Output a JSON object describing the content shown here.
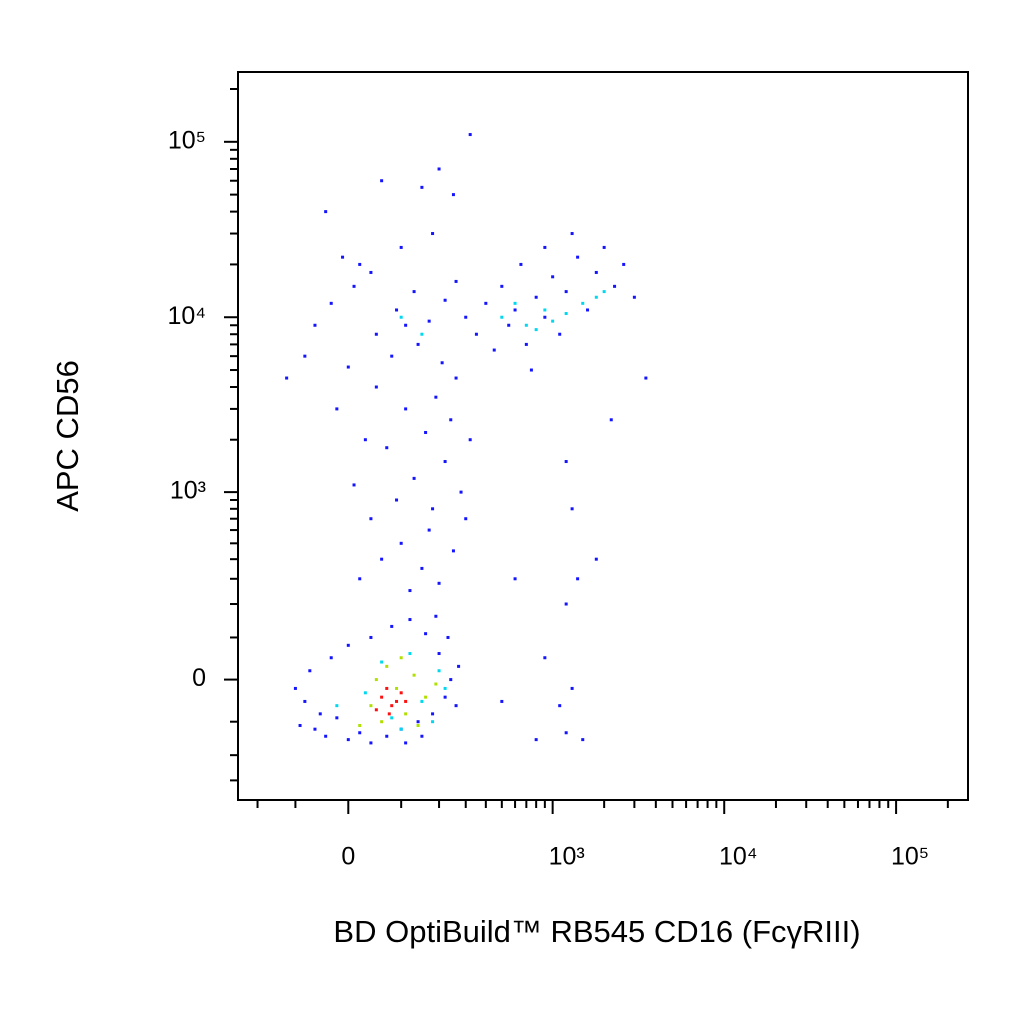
{
  "chart_data": {
    "type": "scatter",
    "xlabel": "BD OptiBuild™ RB545 CD16 (FcγRIII)",
    "ylabel": "APC CD56",
    "xscale": "biexponential",
    "yscale": "biexponential",
    "xlim": [
      -270,
      262000
    ],
    "ylim": [
      -400,
      250000
    ],
    "xticks": [
      0,
      {
        "value": 1000,
        "label": "10³"
      },
      {
        "value": 10000,
        "label": "10⁴"
      },
      {
        "value": 100000,
        "label": "10⁵"
      }
    ],
    "yticks": [
      0,
      {
        "value": 1000,
        "label": "10³"
      },
      {
        "value": 10000,
        "label": "10⁴"
      },
      {
        "value": 100000,
        "label": "10⁵"
      }
    ],
    "xminorticks": [
      -200,
      -100,
      100,
      200,
      300,
      400,
      500,
      600,
      700,
      800,
      900,
      2000,
      3000,
      4000,
      5000,
      6000,
      7000,
      8000,
      9000,
      20000,
      30000,
      40000,
      50000,
      60000,
      70000,
      80000,
      90000,
      200000
    ],
    "yminorticks": [
      -300,
      -200,
      -100,
      100,
      200,
      300,
      400,
      500,
      600,
      700,
      800,
      900,
      2000,
      3000,
      4000,
      5000,
      6000,
      7000,
      8000,
      9000,
      20000,
      30000,
      40000,
      50000,
      60000,
      70000,
      80000,
      90000,
      200000
    ],
    "series": [
      {
        "color": "#1414ff",
        "x": [
          -80,
          -60,
          -40,
          -20,
          0,
          20,
          40,
          70,
          100,
          140,
          180,
          220,
          240,
          200,
          160,
          120,
          80,
          40,
          0,
          -30,
          -70,
          -100,
          -50,
          150,
          260,
          230,
          190,
          270,
          -90,
          110,
          20,
          60,
          100,
          150,
          200,
          250,
          40,
          90,
          130,
          180,
          220,
          10,
          70,
          160,
          240,
          30,
          110,
          190,
          50,
          260,
          0,
          80,
          140,
          210,
          -20,
          280,
          300,
          320,
          120,
          170,
          -60,
          -30,
          10,
          50,
          90,
          130,
          170,
          220,
          260,
          300,
          20,
          100,
          180,
          -40,
          60,
          150,
          250,
          320,
          200,
          -10,
          110,
          -80,
          -120,
          40,
          350,
          400,
          450,
          500,
          550,
          600,
          650,
          700,
          800,
          900,
          1000,
          1100,
          1200,
          1400,
          1600,
          1800,
          2000,
          2300,
          2600,
          3000,
          3500,
          750,
          1300,
          900,
          2200,
          1200,
          1300,
          1400,
          1200,
          1800,
          600,
          800,
          1500,
          1200,
          500,
          1300,
          900,
          1100
        ],
        "y": [
          -50,
          -120,
          -140,
          -90,
          -150,
          -130,
          -160,
          -140,
          -120,
          -100,
          -80,
          -40,
          0,
          60,
          110,
          150,
          130,
          100,
          80,
          50,
          20,
          -20,
          -80,
          -140,
          -60,
          100,
          160,
          30,
          -110,
          -160,
          300,
          400,
          500,
          350,
          280,
          450,
          700,
          900,
          1200,
          800,
          1500,
          1100,
          1800,
          2200,
          2600,
          2000,
          3000,
          3500,
          4000,
          4500,
          5200,
          6000,
          7000,
          5500,
          3000,
          1000,
          700,
          2000,
          250,
          600,
          9000,
          12000,
          15000,
          8000,
          11000,
          14000,
          9500,
          12500,
          16000,
          10000,
          20000,
          25000,
          30000,
          40000,
          60000,
          55000,
          50000,
          110000,
          70000,
          22000,
          9000,
          6000,
          4500,
          18000,
          8000,
          12000,
          6500,
          15000,
          9000,
          11000,
          20000,
          7000,
          13000,
          10000,
          17000,
          8000,
          14000,
          22000,
          11000,
          18000,
          25000,
          15000,
          20000,
          13000,
          4500,
          5000,
          30000,
          25000,
          2600,
          1500,
          800,
          300,
          200,
          400,
          300,
          -150,
          -150,
          -130,
          -50,
          -20,
          50,
          -60
        ]
      },
      {
        "color": "#00d8f0",
        "x": [
          30,
          80,
          150,
          200,
          120,
          60,
          -20,
          180,
          100,
          220,
          500,
          700,
          900,
          1200,
          1500,
          800,
          1800,
          600,
          100,
          150,
          1000,
          2000
        ],
        "y": [
          -30,
          -90,
          -50,
          20,
          60,
          40,
          -60,
          -100,
          -120,
          -20,
          10000,
          9000,
          11000,
          10500,
          12000,
          8500,
          13000,
          12000,
          10000,
          8000,
          9500,
          14000
        ]
      },
      {
        "color": "#b0e000",
        "x": [
          40,
          90,
          110,
          60,
          130,
          70,
          20,
          160,
          100,
          50,
          140,
          190
        ],
        "y": [
          -60,
          -20,
          -80,
          -100,
          10,
          30,
          -110,
          -40,
          50,
          0,
          -110,
          -10
        ]
      },
      {
        "color": "#ff1010",
        "x": [
          60,
          80,
          70,
          90,
          50,
          100,
          75,
          110
        ],
        "y": [
          -40,
          -60,
          -20,
          -50,
          -70,
          -30,
          -80,
          -50
        ]
      }
    ]
  }
}
